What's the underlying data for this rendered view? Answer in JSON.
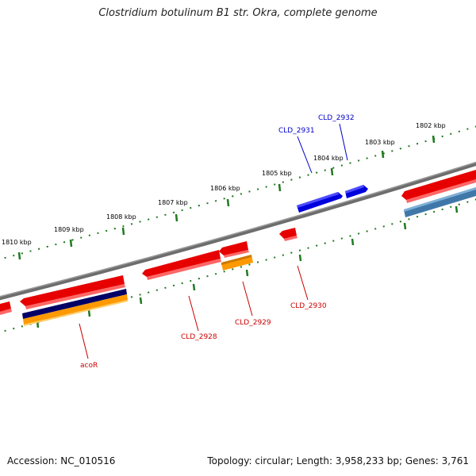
{
  "title": "Clostridium botulinum B1 str. Okra, complete genome",
  "footer": {
    "accession": "Accession: NC_010516",
    "summary": "Topology: circular; Length: 3,958,233 bp; Genes: 3,761"
  },
  "scale_labels": [
    "1802 kbp",
    "1803 kbp",
    "1804 kbp",
    "1805 kbp",
    "1806 kbp",
    "1807 kbp",
    "1808 kbp",
    "1809 kbp",
    "1810 kbp"
  ],
  "gene_labels": [
    "CLD_2932",
    "CLD_2931",
    "CLD_2930",
    "CLD_2929",
    "CLD_2928",
    "acoR"
  ],
  "colors": {
    "backbone": "#777777",
    "scale_ticks": "#1f7a1f",
    "cds_red": "#e60000",
    "cds_blue": "#0000dd",
    "cds_orange": "#ff9900",
    "cds_navy": "#000066",
    "cds_steel": "#3f78a8",
    "label_red": "#cc0000",
    "label_blue": "#0000cc"
  }
}
